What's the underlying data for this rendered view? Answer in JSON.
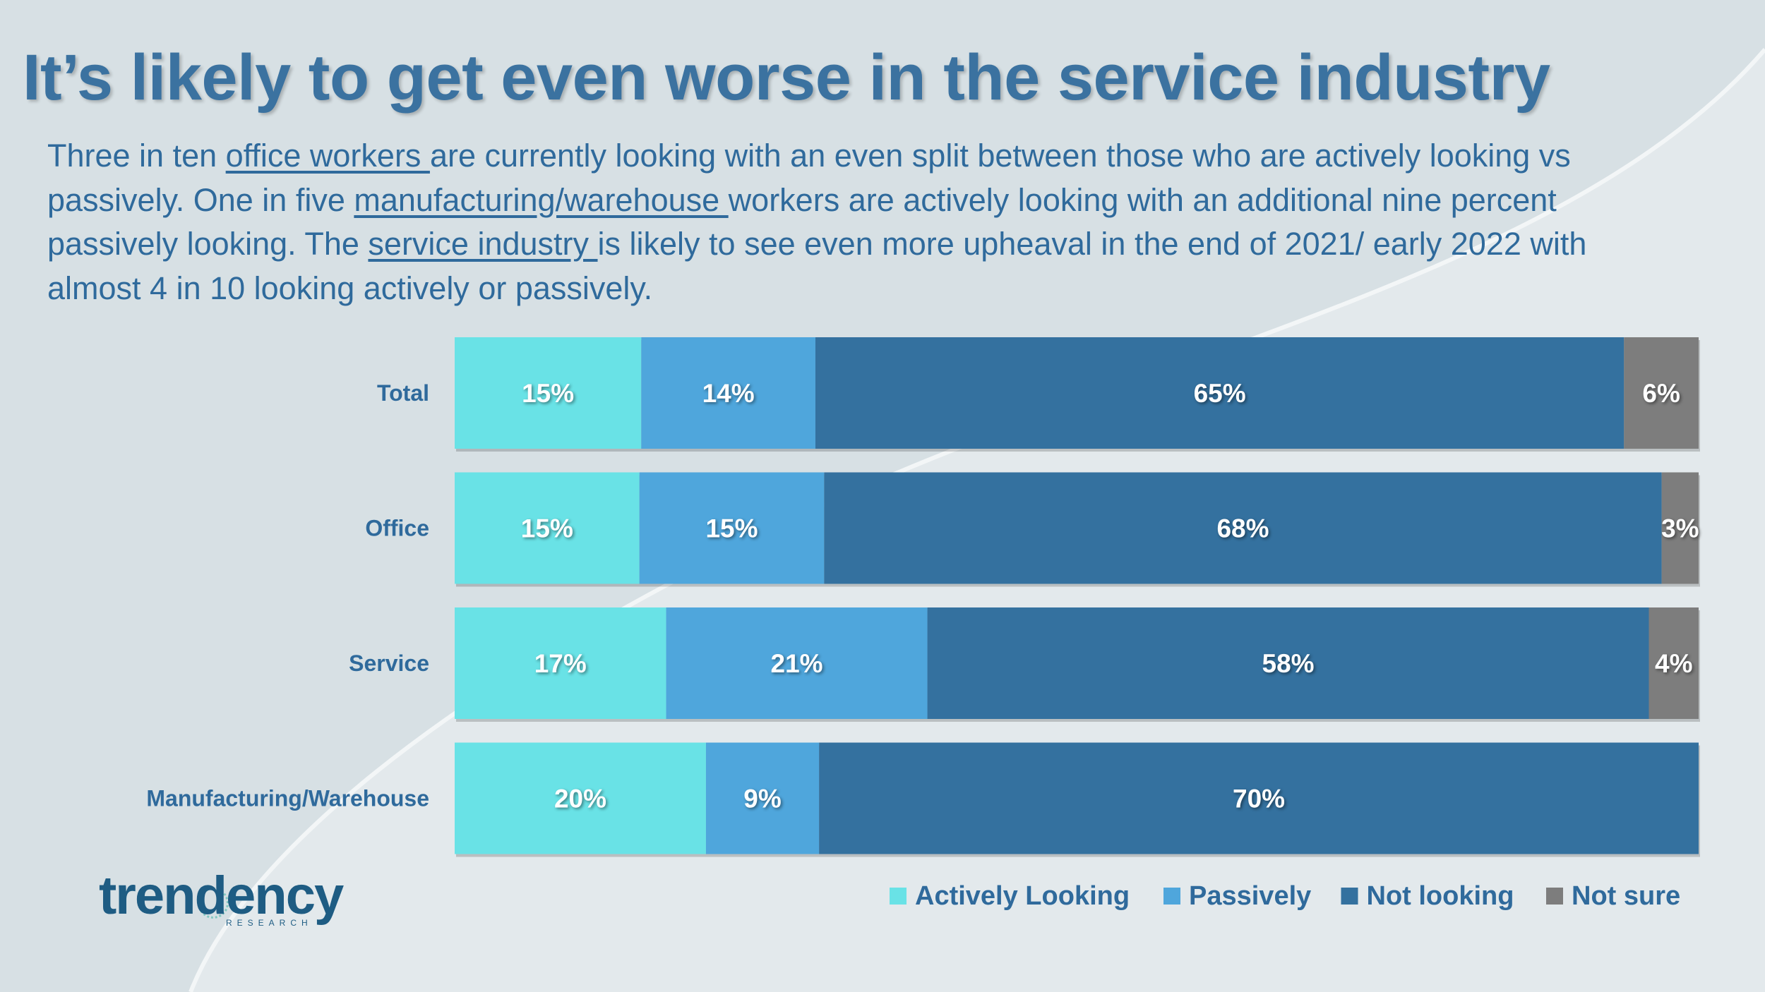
{
  "title": "It’s likely to get even worse in the service industry",
  "subtitle": {
    "t1": "Three in ten ",
    "u1": "office workers ",
    "t2": "are currently looking with an even split between those who are actively looking vs passively. One in five ",
    "u2": "manufacturing/warehouse ",
    "t3": "workers are actively looking with an additional nine percent passively looking. The ",
    "u3": "service industry ",
    "t4": "is likely to see even more upheaval in the end of 2021/ early 2022 with almost 4 in 10 looking actively or passively."
  },
  "chart_data": {
    "type": "bar",
    "orientation": "horizontal",
    "stacked": true,
    "unit": "%",
    "categories": [
      "Total",
      "Office",
      "Service",
      "Manufacturing/Warehouse"
    ],
    "series": [
      {
        "name": "Actively Looking",
        "color": "#69e2e6",
        "values": [
          15,
          15,
          17,
          20
        ]
      },
      {
        "name": "Passively",
        "color": "#4fa6dc",
        "values": [
          14,
          15,
          21,
          9
        ]
      },
      {
        "name": "Not looking",
        "color": "#34719f",
        "values": [
          65,
          68,
          58,
          70
        ]
      },
      {
        "name": "Not sure",
        "color": "#7d7d7d",
        "values": [
          6,
          3,
          4,
          0
        ]
      }
    ],
    "legend_position": "bottom-right",
    "grid": false
  },
  "logo": {
    "word": "trendency",
    "sub": "RESEARCH"
  }
}
